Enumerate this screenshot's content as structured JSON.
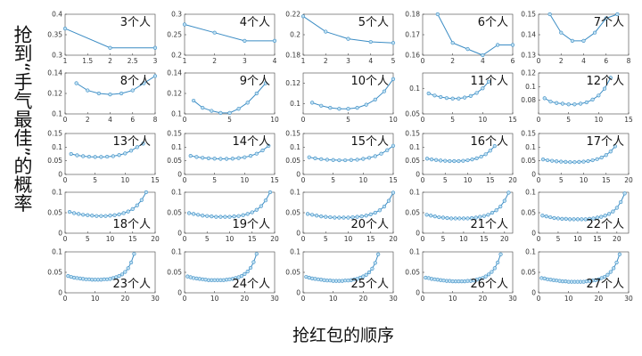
{
  "y_label": "抢到“手气最佳”的概率",
  "x_label": "抢红包的顺序",
  "chart_data": [
    {
      "type": "line",
      "title": "3个人",
      "color": "#3b8cc4",
      "x": [
        1,
        2,
        3
      ],
      "values": [
        0.365,
        0.318,
        0.318
      ],
      "xlim": [
        1,
        3
      ],
      "xticks": [
        1,
        1.5,
        2,
        2.5,
        3
      ],
      "ylim": [
        0.3,
        0.4
      ],
      "yticks": [
        0.3,
        0.35,
        0.4
      ]
    },
    {
      "type": "line",
      "title": "4个人",
      "color": "#3b8cc4",
      "x": [
        1,
        2,
        3,
        4
      ],
      "values": [
        0.275,
        0.255,
        0.235,
        0.235
      ],
      "xlim": [
        1,
        4
      ],
      "xticks": [
        1,
        2,
        3,
        4
      ],
      "ylim": [
        0.2,
        0.3
      ],
      "yticks": [
        0.2,
        0.25,
        0.3
      ]
    },
    {
      "type": "line",
      "title": "5个人",
      "color": "#3b8cc4",
      "x": [
        1,
        2,
        3,
        4,
        5
      ],
      "values": [
        0.218,
        0.203,
        0.196,
        0.193,
        0.192
      ],
      "xlim": [
        1,
        5
      ],
      "xticks": [
        1,
        2,
        3,
        4,
        5
      ],
      "ylim": [
        0.18,
        0.22
      ],
      "yticks": [
        0.18,
        0.2,
        0.22
      ]
    },
    {
      "type": "line",
      "title": "6个人",
      "color": "#3b8cc4",
      "x": [
        1,
        2,
        3,
        4,
        5,
        6
      ],
      "values": [
        0.18,
        0.166,
        0.163,
        0.16,
        0.165,
        0.165
      ],
      "xlim": [
        0,
        6
      ],
      "xticks": [
        0,
        2,
        4,
        6
      ],
      "ylim": [
        0.16,
        0.18
      ],
      "yticks": [
        0.16,
        0.17,
        0.18
      ]
    },
    {
      "type": "line",
      "title": "7个人",
      "color": "#3b8cc4",
      "x": [
        1,
        2,
        3,
        4,
        5,
        6,
        7
      ],
      "values": [
        0.15,
        0.141,
        0.137,
        0.137,
        0.141,
        0.148,
        0.15
      ],
      "xlim": [
        0,
        8
      ],
      "xticks": [
        0,
        2,
        4,
        6,
        8
      ],
      "ylim": [
        0.13,
        0.15
      ],
      "yticks": [
        0.13,
        0.14,
        0.15
      ]
    },
    {
      "type": "line",
      "title": "8个人",
      "color": "#3b8cc4",
      "x": [
        1,
        2,
        3,
        4,
        5,
        6,
        7,
        8
      ],
      "values": [
        0.13,
        0.123,
        0.12,
        0.119,
        0.12,
        0.123,
        0.13,
        0.137
      ],
      "xlim": [
        0,
        8
      ],
      "xticks": [
        0,
        2,
        4,
        6,
        8
      ],
      "ylim": [
        0.1,
        0.14
      ],
      "yticks": [
        0.1,
        0.12,
        0.14
      ]
    },
    {
      "type": "line",
      "title": "9个人",
      "color": "#3b8cc4",
      "x": [
        1,
        2,
        3,
        4,
        5,
        6,
        7,
        8,
        9
      ],
      "values": [
        0.113,
        0.106,
        0.103,
        0.101,
        0.101,
        0.105,
        0.111,
        0.12,
        0.13
      ],
      "xlim": [
        0,
        10
      ],
      "xticks": [
        0,
        5,
        10
      ],
      "ylim": [
        0.1,
        0.14
      ],
      "yticks": [
        0.1,
        0.12,
        0.14
      ]
    },
    {
      "type": "line",
      "title": "10个人",
      "color": "#3b8cc4",
      "x": [
        1,
        2,
        3,
        4,
        5,
        6,
        7,
        8,
        9,
        10
      ],
      "values": [
        0.101,
        0.098,
        0.096,
        0.095,
        0.095,
        0.096,
        0.099,
        0.104,
        0.112,
        0.124
      ],
      "xlim": [
        0,
        10
      ],
      "xticks": [
        0,
        5,
        10
      ],
      "ylim": [
        0.09,
        0.13
      ],
      "yticks": [
        0.1,
        0.12
      ]
    },
    {
      "type": "line",
      "title": "11个人",
      "color": "#3b8cc4",
      "x": [
        1,
        2,
        3,
        4,
        5,
        6,
        7,
        8,
        9,
        10,
        11
      ],
      "values": [
        0.09,
        0.086,
        0.083,
        0.081,
        0.08,
        0.08,
        0.082,
        0.085,
        0.091,
        0.1,
        0.113
      ],
      "xlim": [
        0,
        15
      ],
      "xticks": [
        0,
        5,
        10,
        15
      ],
      "ylim": [
        0.05,
        0.13
      ],
      "yticks": [
        0.05,
        0.1
      ]
    },
    {
      "type": "line",
      "title": "12个人",
      "color": "#3b8cc4",
      "x": [
        1,
        2,
        3,
        4,
        5,
        6,
        7,
        8,
        9,
        10,
        11,
        12
      ],
      "values": [
        0.083,
        0.078,
        0.076,
        0.075,
        0.074,
        0.074,
        0.075,
        0.077,
        0.081,
        0.087,
        0.097,
        0.113
      ],
      "xlim": [
        0,
        15
      ],
      "xticks": [
        0,
        5,
        10,
        15
      ],
      "ylim": [
        0.06,
        0.12
      ],
      "yticks": [
        0.08,
        0.1,
        0.12
      ]
    },
    {
      "type": "line",
      "title": "13个人",
      "color": "#3b8cc4",
      "x": [
        1,
        2,
        3,
        4,
        5,
        6,
        7,
        8,
        9,
        10,
        11,
        12,
        13
      ],
      "values": [
        0.075,
        0.07,
        0.067,
        0.065,
        0.064,
        0.064,
        0.065,
        0.067,
        0.071,
        0.077,
        0.087,
        0.1,
        0.113
      ],
      "xlim": [
        0,
        15
      ],
      "xticks": [
        0,
        5,
        10,
        15
      ],
      "ylim": [
        0,
        0.15
      ],
      "yticks": [
        0,
        0.05,
        0.1,
        0.15
      ]
    },
    {
      "type": "line",
      "title": "14个人",
      "color": "#3b8cc4",
      "x": [
        1,
        2,
        3,
        4,
        5,
        6,
        7,
        8,
        9,
        10,
        11,
        12,
        13,
        14
      ],
      "values": [
        0.068,
        0.064,
        0.061,
        0.059,
        0.058,
        0.057,
        0.057,
        0.058,
        0.06,
        0.063,
        0.068,
        0.076,
        0.088,
        0.105
      ],
      "xlim": [
        0,
        15
      ],
      "xticks": [
        0,
        5,
        10,
        15
      ],
      "ylim": [
        0,
        0.15
      ],
      "yticks": [
        0,
        0.05,
        0.1,
        0.15
      ]
    },
    {
      "type": "line",
      "title": "15个人",
      "color": "#3b8cc4",
      "x": [
        1,
        2,
        3,
        4,
        5,
        6,
        7,
        8,
        9,
        10,
        11,
        12,
        13,
        14,
        15
      ],
      "values": [
        0.063,
        0.059,
        0.056,
        0.054,
        0.053,
        0.052,
        0.052,
        0.053,
        0.054,
        0.057,
        0.061,
        0.067,
        0.076,
        0.089,
        0.105
      ],
      "xlim": [
        0,
        15
      ],
      "xticks": [
        0,
        5,
        10,
        15
      ],
      "ylim": [
        0,
        0.15
      ],
      "yticks": [
        0,
        0.05,
        0.1,
        0.15
      ]
    },
    {
      "type": "line",
      "title": "16个人",
      "color": "#3b8cc4",
      "x": [
        1,
        2,
        3,
        4,
        5,
        6,
        7,
        8,
        9,
        10,
        11,
        12,
        13,
        14,
        15,
        16
      ],
      "values": [
        0.058,
        0.055,
        0.053,
        0.051,
        0.05,
        0.049,
        0.049,
        0.049,
        0.05,
        0.052,
        0.055,
        0.059,
        0.065,
        0.074,
        0.087,
        0.104
      ],
      "xlim": [
        0,
        20
      ],
      "xticks": [
        0,
        5,
        10,
        15,
        20
      ],
      "ylim": [
        0,
        0.15
      ],
      "yticks": [
        0,
        0.05,
        0.1,
        0.15
      ]
    },
    {
      "type": "line",
      "title": "17个人",
      "color": "#3b8cc4",
      "x": [
        1,
        2,
        3,
        4,
        5,
        6,
        7,
        8,
        9,
        10,
        11,
        12,
        13,
        14,
        15,
        16,
        17
      ],
      "values": [
        0.055,
        0.052,
        0.05,
        0.048,
        0.047,
        0.046,
        0.045,
        0.045,
        0.046,
        0.047,
        0.049,
        0.052,
        0.056,
        0.062,
        0.071,
        0.084,
        0.103
      ],
      "xlim": [
        0,
        20
      ],
      "xticks": [
        0,
        5,
        10,
        15,
        20
      ],
      "ylim": [
        0,
        0.15
      ],
      "yticks": [
        0,
        0.05,
        0.1,
        0.15
      ]
    },
    {
      "type": "line",
      "title": "18个人",
      "color": "#3b8cc4",
      "x": [
        1,
        2,
        3,
        4,
        5,
        6,
        7,
        8,
        9,
        10,
        11,
        12,
        13,
        14,
        15,
        16,
        17,
        18
      ],
      "values": [
        0.052,
        0.049,
        0.047,
        0.045,
        0.044,
        0.043,
        0.042,
        0.042,
        0.042,
        0.043,
        0.044,
        0.046,
        0.049,
        0.053,
        0.059,
        0.068,
        0.081,
        0.1
      ],
      "xlim": [
        0,
        20
      ],
      "xticks": [
        0,
        5,
        10,
        15,
        20
      ],
      "ylim": [
        0,
        0.1
      ],
      "yticks": [
        0,
        0.05,
        0.1
      ]
    },
    {
      "type": "line",
      "title": "19个人",
      "color": "#3b8cc4",
      "x": [
        1,
        2,
        3,
        4,
        5,
        6,
        7,
        8,
        9,
        10,
        11,
        12,
        13,
        14,
        15,
        16,
        17,
        18,
        19
      ],
      "values": [
        0.049,
        0.047,
        0.045,
        0.043,
        0.042,
        0.041,
        0.04,
        0.04,
        0.04,
        0.04,
        0.041,
        0.042,
        0.044,
        0.047,
        0.051,
        0.057,
        0.066,
        0.08,
        0.1
      ],
      "xlim": [
        0,
        20
      ],
      "xticks": [
        0,
        5,
        10,
        15,
        20
      ],
      "ylim": [
        0,
        0.1
      ],
      "yticks": [
        0,
        0.05,
        0.1
      ]
    },
    {
      "type": "line",
      "title": "20个人",
      "color": "#3b8cc4",
      "x": [
        1,
        2,
        3,
        4,
        5,
        6,
        7,
        8,
        9,
        10,
        11,
        12,
        13,
        14,
        15,
        16,
        17,
        18,
        19,
        20
      ],
      "values": [
        0.047,
        0.045,
        0.043,
        0.041,
        0.04,
        0.039,
        0.038,
        0.038,
        0.038,
        0.038,
        0.039,
        0.04,
        0.041,
        0.043,
        0.046,
        0.05,
        0.056,
        0.065,
        0.079,
        0.099
      ],
      "xlim": [
        0,
        20
      ],
      "xticks": [
        0,
        5,
        10,
        15,
        20
      ],
      "ylim": [
        0,
        0.1
      ],
      "yticks": [
        0,
        0.05,
        0.1
      ]
    },
    {
      "type": "line",
      "title": "21个人",
      "color": "#3b8cc4",
      "x": [
        1,
        2,
        3,
        4,
        5,
        6,
        7,
        8,
        9,
        10,
        11,
        12,
        13,
        14,
        15,
        16,
        17,
        18,
        19,
        20,
        21
      ],
      "values": [
        0.045,
        0.043,
        0.041,
        0.039,
        0.038,
        0.037,
        0.036,
        0.036,
        0.036,
        0.036,
        0.036,
        0.037,
        0.038,
        0.04,
        0.042,
        0.045,
        0.05,
        0.056,
        0.065,
        0.079,
        0.099
      ],
      "xlim": [
        0,
        22
      ],
      "xticks": [
        0,
        5,
        10,
        15,
        20
      ],
      "ylim": [
        0,
        0.1
      ],
      "yticks": [
        0,
        0.05,
        0.1
      ]
    },
    {
      "type": "line",
      "title": "22个人",
      "color": "#3b8cc4",
      "x": [
        1,
        2,
        3,
        4,
        5,
        6,
        7,
        8,
        9,
        10,
        11,
        12,
        13,
        14,
        15,
        16,
        17,
        18,
        19,
        20,
        21,
        22
      ],
      "values": [
        0.043,
        0.041,
        0.039,
        0.037,
        0.036,
        0.035,
        0.035,
        0.034,
        0.034,
        0.034,
        0.034,
        0.034,
        0.035,
        0.036,
        0.038,
        0.04,
        0.043,
        0.047,
        0.053,
        0.062,
        0.076,
        0.097
      ],
      "xlim": [
        0,
        23
      ],
      "xticks": [
        0,
        5,
        10,
        15,
        20
      ],
      "ylim": [
        0,
        0.1
      ],
      "yticks": [
        0,
        0.05,
        0.1
      ]
    },
    {
      "type": "line",
      "title": "23个人",
      "color": "#3b8cc4",
      "x": [
        1,
        2,
        3,
        4,
        5,
        6,
        7,
        8,
        9,
        10,
        11,
        12,
        13,
        14,
        15,
        16,
        17,
        18,
        19,
        20,
        21,
        22,
        23
      ],
      "values": [
        0.041,
        0.039,
        0.037,
        0.036,
        0.035,
        0.034,
        0.033,
        0.033,
        0.032,
        0.032,
        0.032,
        0.032,
        0.033,
        0.033,
        0.034,
        0.036,
        0.038,
        0.041,
        0.045,
        0.051,
        0.06,
        0.074,
        0.095
      ],
      "xlim": [
        0,
        30
      ],
      "xticks": [
        0,
        10,
        20,
        30
      ],
      "ylim": [
        0,
        0.1
      ],
      "yticks": [
        0,
        0.05,
        0.1
      ]
    },
    {
      "type": "line",
      "title": "24个人",
      "color": "#3b8cc4",
      "x": [
        1,
        2,
        3,
        4,
        5,
        6,
        7,
        8,
        9,
        10,
        11,
        12,
        13,
        14,
        15,
        16,
        17,
        18,
        19,
        20,
        21,
        22,
        23,
        24
      ],
      "values": [
        0.04,
        0.038,
        0.036,
        0.035,
        0.034,
        0.033,
        0.032,
        0.031,
        0.031,
        0.031,
        0.031,
        0.031,
        0.031,
        0.032,
        0.033,
        0.034,
        0.036,
        0.038,
        0.041,
        0.046,
        0.052,
        0.061,
        0.075,
        0.095
      ],
      "xlim": [
        0,
        30
      ],
      "xticks": [
        0,
        10,
        20,
        30
      ],
      "ylim": [
        0,
        0.1
      ],
      "yticks": [
        0,
        0.05,
        0.1
      ]
    },
    {
      "type": "line",
      "title": "25个人",
      "color": "#3b8cc4",
      "x": [
        1,
        2,
        3,
        4,
        5,
        6,
        7,
        8,
        9,
        10,
        11,
        12,
        13,
        14,
        15,
        16,
        17,
        18,
        19,
        20,
        21,
        22,
        23,
        24,
        25
      ],
      "values": [
        0.039,
        0.037,
        0.035,
        0.034,
        0.033,
        0.032,
        0.031,
        0.03,
        0.03,
        0.029,
        0.029,
        0.029,
        0.029,
        0.03,
        0.03,
        0.031,
        0.033,
        0.034,
        0.037,
        0.04,
        0.044,
        0.05,
        0.059,
        0.073,
        0.094
      ],
      "xlim": [
        0,
        30
      ],
      "xticks": [
        0,
        10,
        20,
        30
      ],
      "ylim": [
        0,
        0.1
      ],
      "yticks": [
        0,
        0.05,
        0.1
      ]
    },
    {
      "type": "line",
      "title": "26个人",
      "color": "#3b8cc4",
      "x": [
        1,
        2,
        3,
        4,
        5,
        6,
        7,
        8,
        9,
        10,
        11,
        12,
        13,
        14,
        15,
        16,
        17,
        18,
        19,
        20,
        21,
        22,
        23,
        24,
        25,
        26
      ],
      "values": [
        0.037,
        0.036,
        0.034,
        0.033,
        0.032,
        0.031,
        0.03,
        0.029,
        0.029,
        0.028,
        0.028,
        0.028,
        0.028,
        0.028,
        0.029,
        0.029,
        0.03,
        0.032,
        0.034,
        0.036,
        0.04,
        0.045,
        0.051,
        0.06,
        0.074,
        0.094
      ],
      "xlim": [
        0,
        30
      ],
      "xticks": [
        0,
        10,
        20,
        30
      ],
      "ylim": [
        0,
        0.1
      ],
      "yticks": [
        0,
        0.05,
        0.1
      ]
    },
    {
      "type": "line",
      "title": "27个人",
      "color": "#3b8cc4",
      "x": [
        1,
        2,
        3,
        4,
        5,
        6,
        7,
        8,
        9,
        10,
        11,
        12,
        13,
        14,
        15,
        16,
        17,
        18,
        19,
        20,
        21,
        22,
        23,
        24,
        25,
        26,
        27
      ],
      "values": [
        0.036,
        0.035,
        0.033,
        0.032,
        0.031,
        0.03,
        0.029,
        0.028,
        0.028,
        0.027,
        0.027,
        0.027,
        0.027,
        0.027,
        0.027,
        0.028,
        0.029,
        0.03,
        0.031,
        0.033,
        0.036,
        0.039,
        0.044,
        0.051,
        0.06,
        0.074,
        0.094
      ],
      "xlim": [
        0,
        30
      ],
      "xticks": [
        0,
        10,
        20,
        30
      ],
      "ylim": [
        0,
        0.1
      ],
      "yticks": [
        0,
        0.05,
        0.1
      ]
    }
  ]
}
